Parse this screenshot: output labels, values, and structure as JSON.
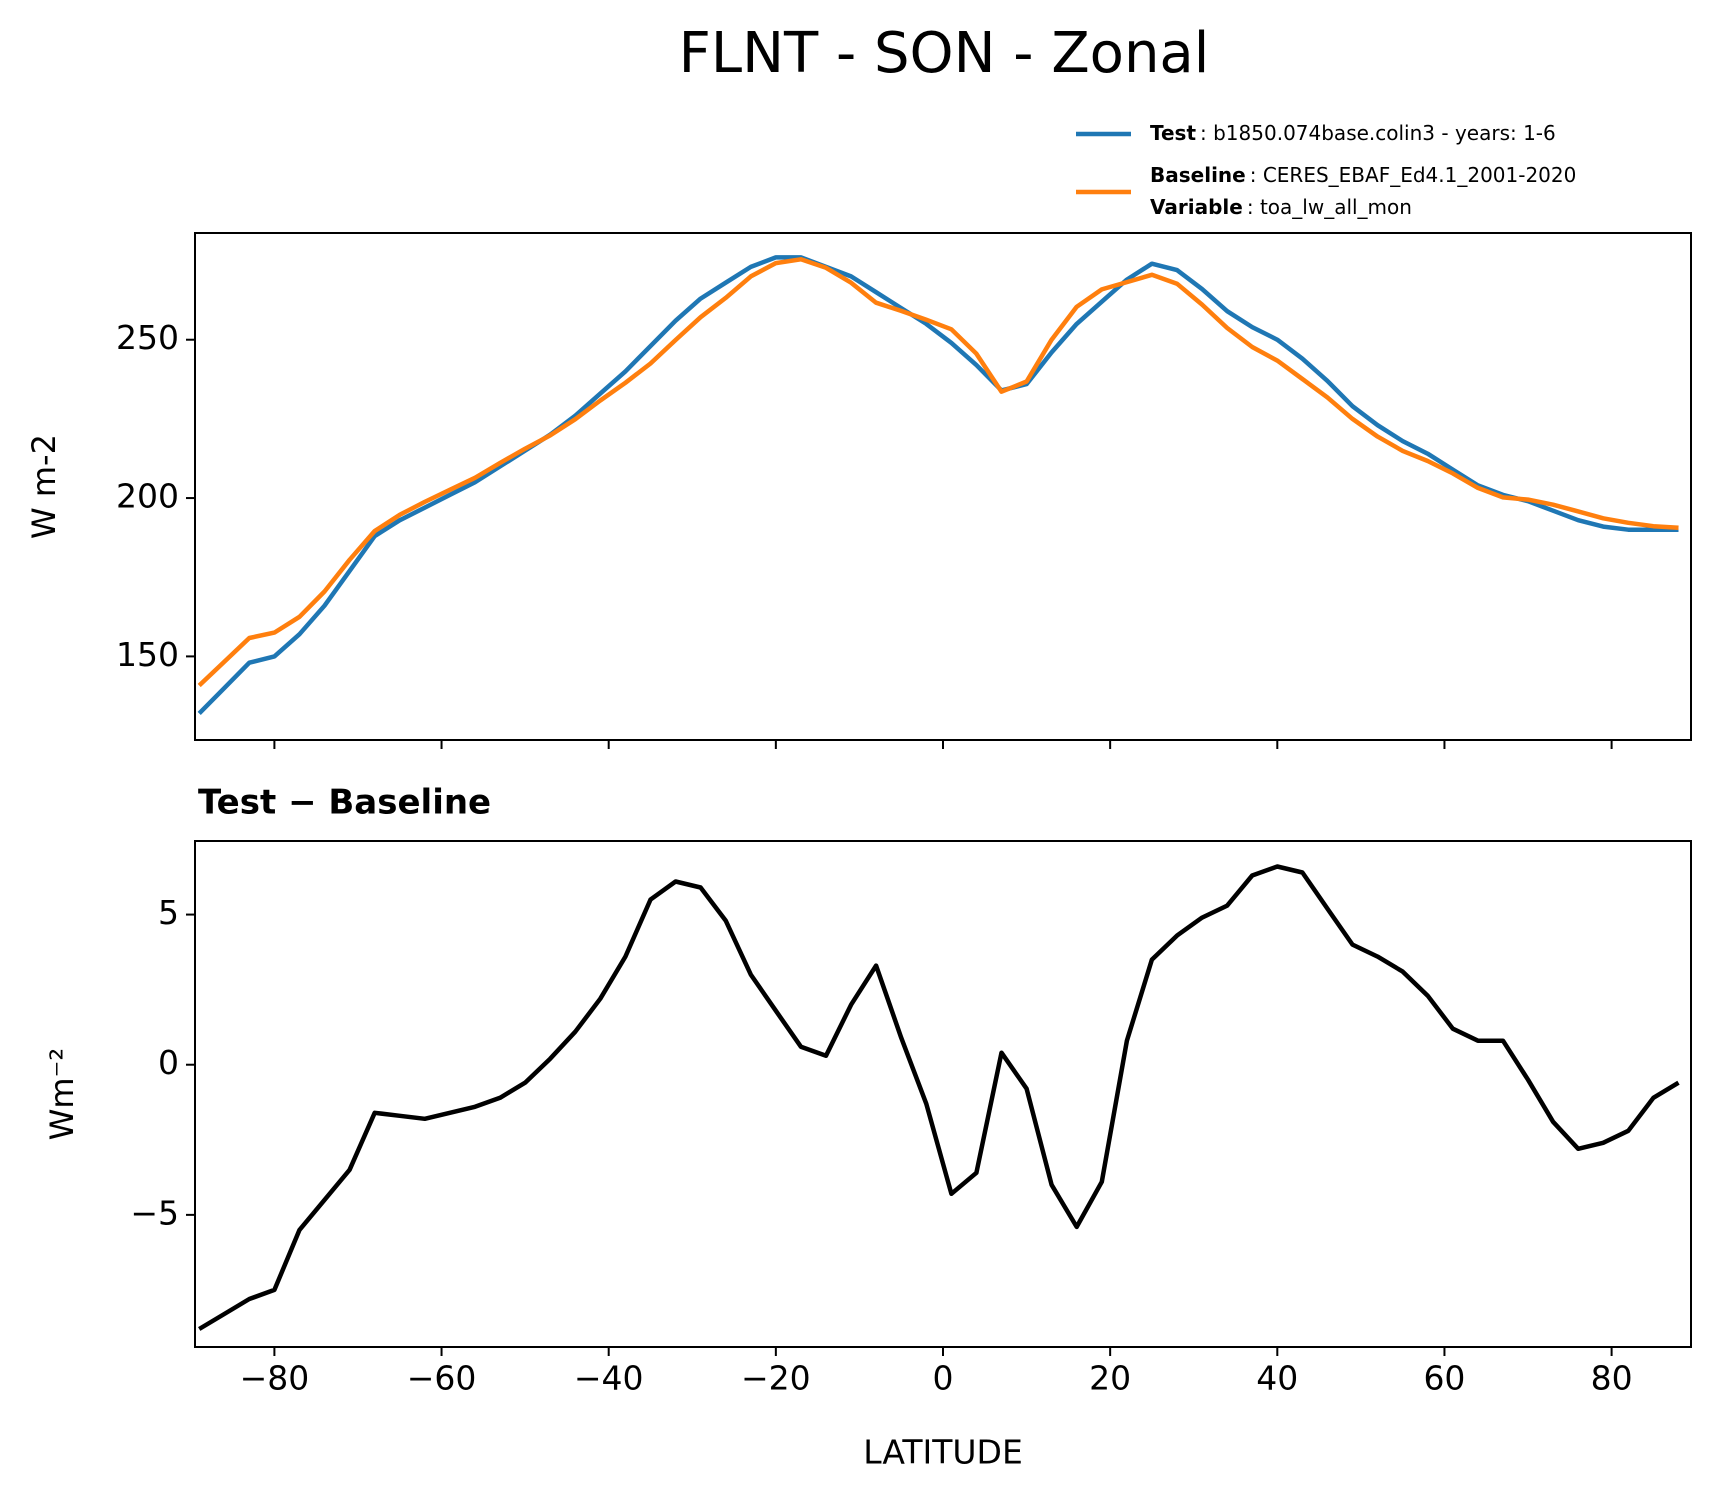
{
  "title": "FLNT - SON - Zonal",
  "chart_data": [
    {
      "type": "line",
      "ylabel": "W m-2",
      "x": [
        -89,
        -86,
        -83,
        -80,
        -77,
        -74,
        -71,
        -68,
        -65,
        -62,
        -59,
        -56,
        -53,
        -50,
        -47,
        -44,
        -41,
        -38,
        -35,
        -32,
        -29,
        -26,
        -23,
        -20,
        -17,
        -14,
        -11,
        -8,
        -5,
        -2,
        1,
        4,
        7,
        10,
        13,
        16,
        19,
        22,
        25,
        28,
        31,
        34,
        37,
        40,
        43,
        46,
        49,
        52,
        55,
        58,
        61,
        64,
        67,
        70,
        73,
        76,
        79,
        82,
        85,
        88
      ],
      "series": [
        {
          "name": "Test",
          "description": ": b1850.074base.colin3 - years: 1-6",
          "color": "#1f77b4",
          "values": [
            132,
            140,
            148,
            150,
            157,
            166,
            177,
            188,
            193,
            197,
            201,
            205,
            210,
            215,
            220,
            226,
            233,
            240,
            248,
            256,
            263,
            268,
            273,
            276,
            276,
            273,
            270,
            265,
            260,
            255,
            249,
            242,
            234,
            236,
            246,
            255,
            262,
            269,
            274,
            272,
            266,
            259,
            254,
            250,
            244,
            237,
            229,
            223,
            218,
            214,
            209,
            204,
            201,
            199,
            196,
            193,
            191,
            190,
            190,
            190
          ]
        },
        {
          "name": "Baseline",
          "description": ": CERES_EBAF_Ed4.1_2001-2020",
          "color": "#ff7f0e",
          "values": [
            140.8,
            148.3,
            155.8,
            157.5,
            162.5,
            170.5,
            180.5,
            189.6,
            194.7,
            198.8,
            202.6,
            206.4,
            211.1,
            215.6,
            219.8,
            224.9,
            230.8,
            236.4,
            242.5,
            249.9,
            257.1,
            263.2,
            270,
            274.2,
            275.4,
            272.7,
            268,
            261.7,
            259.1,
            256.3,
            253.3,
            245.6,
            233.6,
            236.8,
            250,
            260.4,
            265.9,
            268.2,
            270.5,
            267.7,
            261.1,
            253.7,
            247.7,
            243.4,
            237.6,
            231.8,
            225,
            219.4,
            214.9,
            211.7,
            207.8,
            203.2,
            200.2,
            199.5,
            197.9,
            195.8,
            193.6,
            192.2,
            191.1,
            190.6
          ]
        }
      ],
      "legend_extra": {
        "name": "Variable",
        "description": ": toa_lw_all_mon"
      },
      "xlim": [
        -89.5,
        89.5
      ],
      "xticks": [
        -80,
        -60,
        -40,
        -20,
        0,
        20,
        40,
        60,
        80
      ],
      "ylim": [
        123.6,
        283.7
      ],
      "yticks": [
        150,
        200,
        250
      ]
    },
    {
      "type": "line",
      "title": "Test − Baseline",
      "xlabel": "LATITUDE",
      "ylabel": "Wm⁻²",
      "x": [
        -89,
        -86,
        -83,
        -80,
        -77,
        -74,
        -71,
        -68,
        -65,
        -62,
        -59,
        -56,
        -53,
        -50,
        -47,
        -44,
        -41,
        -38,
        -35,
        -32,
        -29,
        -26,
        -23,
        -20,
        -17,
        -14,
        -11,
        -8,
        -5,
        -2,
        1,
        4,
        7,
        10,
        13,
        16,
        19,
        22,
        25,
        28,
        31,
        34,
        37,
        40,
        43,
        46,
        49,
        52,
        55,
        58,
        61,
        64,
        67,
        70,
        73,
        76,
        79,
        82,
        85,
        88
      ],
      "series": [
        {
          "color": "#000000",
          "values": [
            -8.8,
            -8.3,
            -7.8,
            -7.5,
            -5.5,
            -4.5,
            -3.5,
            -1.6,
            -1.7,
            -1.8,
            -1.6,
            -1.4,
            -1.1,
            -0.6,
            0.2,
            1.1,
            2.2,
            3.6,
            5.5,
            6.1,
            5.9,
            4.8,
            3.0,
            1.8,
            0.6,
            0.3,
            2.0,
            3.3,
            0.9,
            -1.3,
            -4.3,
            -3.6,
            0.4,
            -0.8,
            -4.0,
            -5.4,
            -3.9,
            0.8,
            3.5,
            4.3,
            4.9,
            5.3,
            6.3,
            6.6,
            6.4,
            5.2,
            4.0,
            3.6,
            3.1,
            2.3,
            1.2,
            0.8,
            0.8,
            -0.5,
            -1.9,
            -2.8,
            -2.6,
            -2.2,
            -1.1,
            -0.6
          ]
        }
      ],
      "xlim": [
        -89.5,
        89.5
      ],
      "xticks": [
        {
          "value": -80,
          "label": "−80"
        },
        {
          "value": -60,
          "label": "−60"
        },
        {
          "value": -40,
          "label": "−40"
        },
        {
          "value": -20,
          "label": "−20"
        },
        0,
        20,
        40,
        60,
        80
      ],
      "ylim": [
        -9.4,
        7.45
      ],
      "yticks": [
        {
          "value": -5,
          "label": "−5"
        },
        0,
        5
      ]
    }
  ]
}
